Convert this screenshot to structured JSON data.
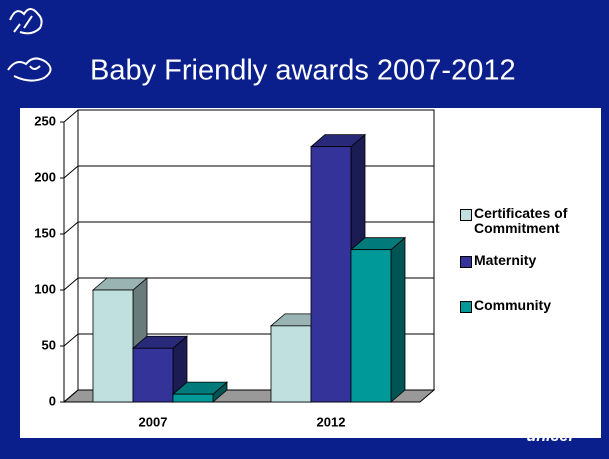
{
  "chart_data": {
    "type": "bar3d",
    "title": "Baby Friendly awards 2007-2012",
    "categories": [
      "2007",
      "2012"
    ],
    "series": [
      {
        "name": "Certificates of Commitment",
        "color": "#c0e0e0",
        "values": [
          100,
          68
        ]
      },
      {
        "name": "Maternity",
        "color": "#333399",
        "values": [
          48,
          228
        ]
      },
      {
        "name": "Community",
        "color": "#009999",
        "values": [
          7,
          136
        ]
      }
    ],
    "ylim": [
      0,
      250
    ],
    "yticks": [
      0,
      50,
      100,
      150,
      200,
      250
    ],
    "grid": true,
    "legend": "right"
  },
  "logo_text": "unicef"
}
